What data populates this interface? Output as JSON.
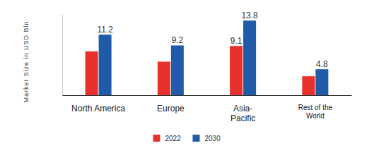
{
  "chart_data": {
    "type": "bar",
    "y_label": "Market Size in USD Bln",
    "categories": [
      "North America",
      "Europe",
      "Asia-Pacific",
      "Rest of the World"
    ],
    "series": [
      {
        "name": "2022",
        "color": "#e8302c",
        "values": [
          8.1,
          6.2,
          9.1,
          3.5
        ],
        "value_labels": [
          null,
          null,
          "9.1",
          null
        ]
      },
      {
        "name": "2030",
        "color": "#1f5ba8",
        "values": [
          11.2,
          9.2,
          13.8,
          4.8
        ]
      }
    ],
    "ylim": [
      0,
      15
    ],
    "tick_labels": "x",
    "grid": false,
    "data_labels": true,
    "legend": "bottom"
  }
}
